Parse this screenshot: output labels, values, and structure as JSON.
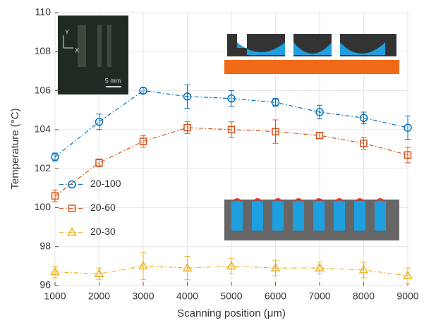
{
  "chart_data": {
    "type": "line",
    "x_label": "Scanning position (μm)",
    "y_label": "Temperature (°C)",
    "x": [
      1000,
      2000,
      3000,
      4000,
      5000,
      6000,
      7000,
      8000,
      9000
    ],
    "series": [
      {
        "name": "20-100",
        "color": "#0072bd",
        "marker": "circle",
        "values": [
          102.6,
          104.4,
          106.0,
          105.7,
          105.6,
          105.4,
          104.9,
          104.6,
          104.1
        ],
        "errors": [
          0.2,
          0.4,
          0.15,
          0.6,
          0.4,
          0.2,
          0.35,
          0.3,
          0.6
        ]
      },
      {
        "name": "20-60",
        "color": "#d95319",
        "marker": "square",
        "values": [
          100.6,
          102.3,
          103.4,
          104.1,
          104.0,
          103.9,
          103.7,
          103.3,
          102.7
        ],
        "errors": [
          0.3,
          0.2,
          0.3,
          0.3,
          0.4,
          0.6,
          0.15,
          0.3,
          0.4
        ]
      },
      {
        "name": "20-30",
        "color": "#edb120",
        "marker": "triangle",
        "values": [
          96.7,
          96.6,
          97.0,
          96.9,
          97.0,
          96.9,
          96.9,
          96.8,
          96.5
        ],
        "errors": [
          0.3,
          0.3,
          0.7,
          0.6,
          0.4,
          0.4,
          0.3,
          0.4,
          0.4
        ]
      }
    ],
    "xlim": [
      1000,
      9000
    ],
    "xticks": [
      1000,
      2000,
      3000,
      4000,
      5000,
      6000,
      7000,
      8000,
      9000
    ],
    "ylim": [
      96,
      110
    ],
    "yticks": [
      96,
      98,
      100,
      102,
      104,
      106,
      108,
      110
    ],
    "grid": true,
    "legend": "center left",
    "inset_labels": [
      "Y",
      "X",
      "5 mm"
    ]
  }
}
